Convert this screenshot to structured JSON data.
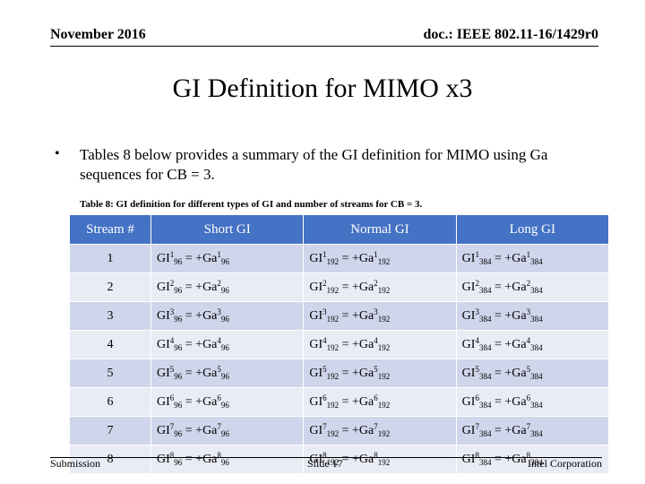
{
  "header": {
    "date": "November 2016",
    "doc": "doc.: IEEE 802.11-16/1429r0"
  },
  "title": "GI Definition for MIMO x3",
  "bullet": {
    "symbol": "•",
    "text": "Tables 8 below provides a summary of the GI definition for MIMO using Ga sequences for CB = 3."
  },
  "table": {
    "caption": "Table 8: GI definition for different types of GI and number of streams for CB = 3.",
    "columns": [
      "Stream #",
      "Short GI",
      "Normal GI",
      "Long GI"
    ],
    "rows": [
      {
        "stream": "1",
        "short": {
          "sup": "1",
          "sub": "96"
        },
        "normal": {
          "sup": "1",
          "sub": "192"
        },
        "long": {
          "sup": "1",
          "sub": "384"
        }
      },
      {
        "stream": "2",
        "short": {
          "sup": "2",
          "sub": "96"
        },
        "normal": {
          "sup": "2",
          "sub": "192"
        },
        "long": {
          "sup": "2",
          "sub": "384"
        }
      },
      {
        "stream": "3",
        "short": {
          "sup": "3",
          "sub": "96"
        },
        "normal": {
          "sup": "3",
          "sub": "192"
        },
        "long": {
          "sup": "3",
          "sub": "384"
        }
      },
      {
        "stream": "4",
        "short": {
          "sup": "4",
          "sub": "96"
        },
        "normal": {
          "sup": "4",
          "sub": "192"
        },
        "long": {
          "sup": "4",
          "sub": "384"
        }
      },
      {
        "stream": "5",
        "short": {
          "sup": "5",
          "sub": "96"
        },
        "normal": {
          "sup": "5",
          "sub": "192"
        },
        "long": {
          "sup": "5",
          "sub": "384"
        }
      },
      {
        "stream": "6",
        "short": {
          "sup": "6",
          "sub": "96"
        },
        "normal": {
          "sup": "6",
          "sub": "192"
        },
        "long": {
          "sup": "6",
          "sub": "384"
        }
      },
      {
        "stream": "7",
        "short": {
          "sup": "7",
          "sub": "96"
        },
        "normal": {
          "sup": "7",
          "sub": "192"
        },
        "long": {
          "sup": "7",
          "sub": "384"
        }
      },
      {
        "stream": "8",
        "short": {
          "sup": "8",
          "sub": "96"
        },
        "normal": {
          "sup": "8",
          "sub": "192"
        },
        "long": {
          "sup": "8",
          "sub": "384"
        }
      }
    ],
    "cell_text": {
      "lhs": "GI",
      "eq": " = +",
      "rhs": "Ga"
    }
  },
  "footer": {
    "left": "Submission",
    "center": "Slide 17",
    "right": "Intel Corporation"
  },
  "colors": {
    "header_row": "#4472c4",
    "row_dark": "#cfd5ea",
    "row_light": "#e9ebf5"
  }
}
